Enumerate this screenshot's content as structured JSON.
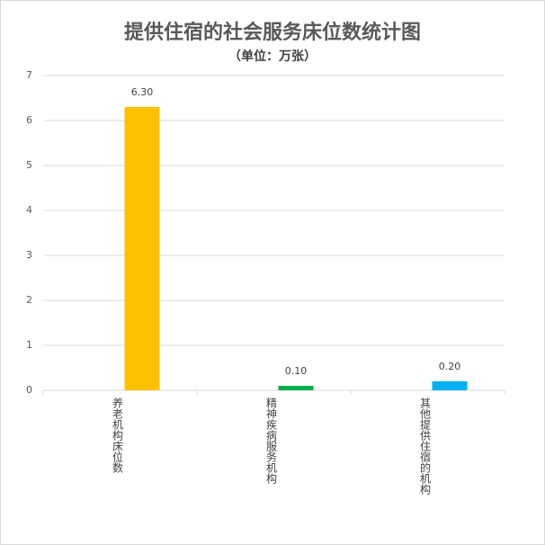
{
  "chart_data": {
    "type": "bar",
    "title": "提供住宿的社会服务床位数统计图",
    "subtitle": "（单位：万张）",
    "categories": [
      "养老机构床位数",
      "精神疾病服务机构",
      "其他提供住宿的机构"
    ],
    "values": [
      6.3,
      0.1,
      0.2
    ],
    "value_labels": [
      "6.30",
      "0.10",
      "0.20"
    ],
    "colors": [
      "#FFC000",
      "#00B050",
      "#00B0F0"
    ],
    "ylim": [
      0,
      7
    ],
    "yticks": [
      0,
      1,
      2,
      3,
      4,
      5,
      6,
      7
    ],
    "grid": true
  }
}
